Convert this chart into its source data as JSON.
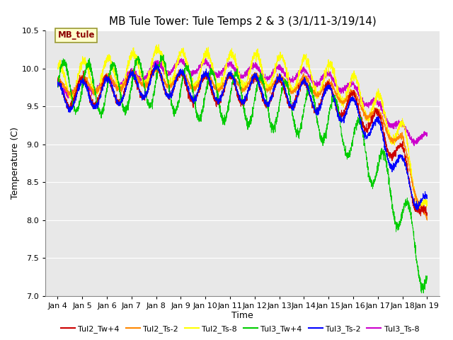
{
  "title": "MB Tule Tower: Tule Temps 2 & 3 (3/1/11-3/19/14)",
  "xlabel": "Time",
  "ylabel": "Temperature (C)",
  "ylim": [
    7.0,
    10.5
  ],
  "xlim": [
    3.5,
    19.5
  ],
  "yticks": [
    7.0,
    7.5,
    8.0,
    8.5,
    9.0,
    9.5,
    10.0,
    10.5
  ],
  "xtick_labels": [
    "Jan 4",
    "Jan 5",
    "Jan 6",
    "Jan 7",
    "Jan 8",
    "Jan 9",
    "Jan 10",
    "Jan 11",
    "Jan 12",
    "Jan 13",
    "Jan 14",
    "Jan 15",
    "Jan 16",
    "Jan 17",
    "Jan 18",
    "Jan 19"
  ],
  "xtick_positions": [
    4,
    5,
    6,
    7,
    8,
    9,
    10,
    11,
    12,
    13,
    14,
    15,
    16,
    17,
    18,
    19
  ],
  "series_colors": {
    "Tul2_Tw+4": "#cc0000",
    "Tul2_Ts-2": "#ff8800",
    "Tul2_Ts-8": "#ffff00",
    "Tul3_Tw+4": "#00cc00",
    "Tul3_Ts-2": "#0000ff",
    "Tul3_Ts-8": "#cc00cc"
  },
  "legend_label": "MB_tule",
  "background_color": "#ffffff",
  "plot_bg_color": "#e8e8e8",
  "grid_color": "#ffffff",
  "title_fontsize": 11,
  "axis_fontsize": 9,
  "tick_fontsize": 8
}
